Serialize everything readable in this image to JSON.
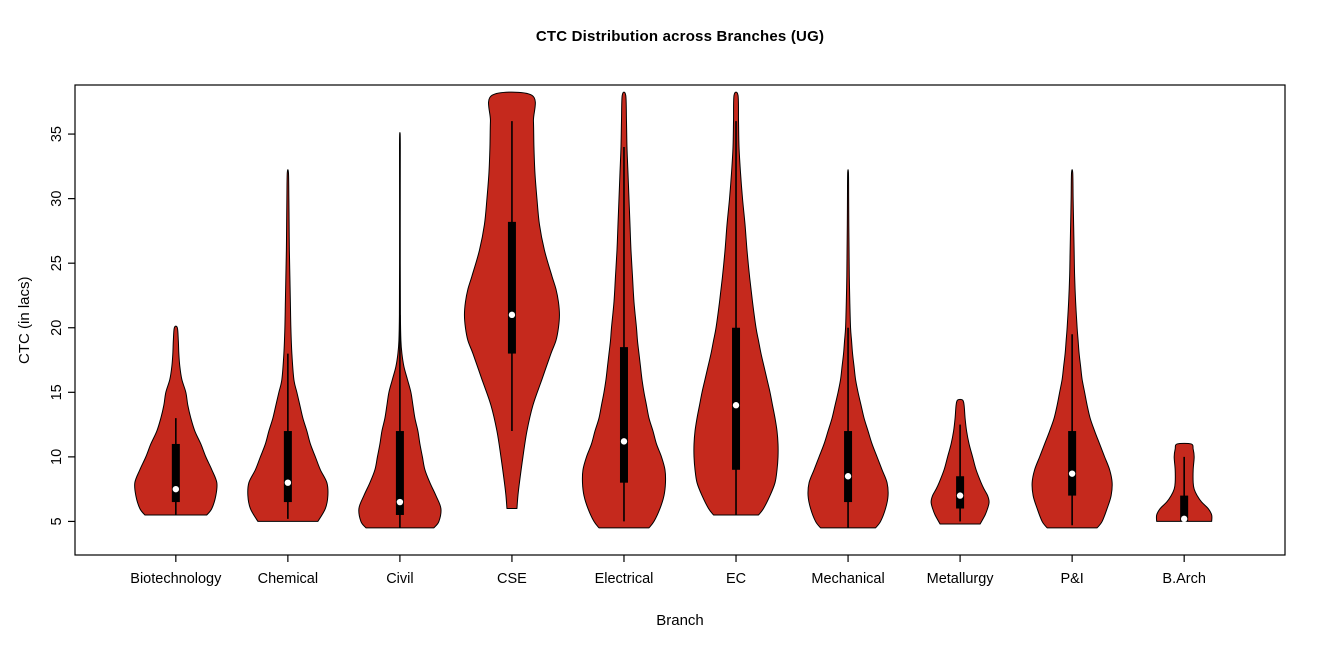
{
  "chart_data": {
    "type": "violin",
    "title": "CTC Distribution across Branches (UG)",
    "xlabel": "Branch",
    "ylabel": "CTC (in lacs)",
    "ylim": [
      2.4,
      38.8
    ],
    "yticks": [
      5,
      10,
      15,
      20,
      25,
      30,
      35
    ],
    "categories": [
      "Biotechnology",
      "Chemical",
      "Civil",
      "CSE",
      "Electrical",
      "EC",
      "Mechanical",
      "Metallurgy",
      "P&I",
      "B.Arch"
    ],
    "colors": {
      "violin_fill": "#C5291D",
      "violin_stroke": "#000000",
      "box": "#000000",
      "median_dot": "#FFFFFF",
      "axis": "#000000",
      "background": "#FFFFFF"
    },
    "series": [
      {
        "name": "Biotechnology",
        "min": 5.5,
        "max": 20,
        "median": 7.5,
        "q1": 6.5,
        "q3": 11,
        "whisker_low": 5.5,
        "whisker_high": 13,
        "profile": [
          [
            5.5,
            0.62
          ],
          [
            6,
            0.72
          ],
          [
            7,
            0.8
          ],
          [
            8,
            0.82
          ],
          [
            9,
            0.72
          ],
          [
            10,
            0.6
          ],
          [
            11,
            0.5
          ],
          [
            12,
            0.38
          ],
          [
            13,
            0.3
          ],
          [
            14,
            0.24
          ],
          [
            15,
            0.2
          ],
          [
            16,
            0.12
          ],
          [
            17,
            0.08
          ],
          [
            18,
            0.06
          ],
          [
            19,
            0.05
          ],
          [
            20,
            0.03
          ]
        ]
      },
      {
        "name": "Chemical",
        "min": 5,
        "max": 32,
        "median": 8,
        "q1": 6.5,
        "q3": 12,
        "whisker_low": 5.2,
        "whisker_high": 18,
        "profile": [
          [
            5,
            0.6
          ],
          [
            6,
            0.75
          ],
          [
            7,
            0.8
          ],
          [
            8,
            0.78
          ],
          [
            9,
            0.65
          ],
          [
            10,
            0.55
          ],
          [
            11,
            0.45
          ],
          [
            12,
            0.38
          ],
          [
            13,
            0.3
          ],
          [
            14,
            0.24
          ],
          [
            15,
            0.18
          ],
          [
            16,
            0.12
          ],
          [
            18,
            0.08
          ],
          [
            20,
            0.06
          ],
          [
            22,
            0.05
          ],
          [
            24,
            0.04
          ],
          [
            26,
            0.03
          ],
          [
            28,
            0.025
          ],
          [
            30,
            0.02
          ],
          [
            32,
            0.012
          ]
        ]
      },
      {
        "name": "Civil",
        "min": 4.5,
        "max": 35,
        "median": 6.5,
        "q1": 5.5,
        "q3": 12,
        "whisker_low": 4.5,
        "whisker_high": 21,
        "profile": [
          [
            4.5,
            0.68
          ],
          [
            5,
            0.78
          ],
          [
            6,
            0.82
          ],
          [
            7,
            0.72
          ],
          [
            8,
            0.6
          ],
          [
            9,
            0.5
          ],
          [
            10,
            0.45
          ],
          [
            11,
            0.4
          ],
          [
            12,
            0.36
          ],
          [
            13,
            0.3
          ],
          [
            14,
            0.26
          ],
          [
            15,
            0.22
          ],
          [
            16,
            0.15
          ],
          [
            17,
            0.08
          ],
          [
            18,
            0.04
          ],
          [
            19,
            0.02
          ],
          [
            21,
            0.01
          ],
          [
            25,
            0.007
          ],
          [
            30,
            0.007
          ],
          [
            34,
            0.008
          ],
          [
            35,
            0.005
          ]
        ]
      },
      {
        "name": "CSE",
        "min": 6,
        "max": 38,
        "median": 21,
        "q1": 18,
        "q3": 28.2,
        "whisker_low": 12,
        "whisker_high": 36,
        "profile": [
          [
            6,
            0.1
          ],
          [
            7,
            0.12
          ],
          [
            8,
            0.15
          ],
          [
            10,
            0.22
          ],
          [
            12,
            0.3
          ],
          [
            14,
            0.42
          ],
          [
            16,
            0.6
          ],
          [
            18,
            0.78
          ],
          [
            19,
            0.88
          ],
          [
            20,
            0.93
          ],
          [
            21,
            0.95
          ],
          [
            22,
            0.93
          ],
          [
            23,
            0.88
          ],
          [
            24,
            0.8
          ],
          [
            26,
            0.65
          ],
          [
            28,
            0.55
          ],
          [
            30,
            0.5
          ],
          [
            32,
            0.46
          ],
          [
            34,
            0.44
          ],
          [
            36,
            0.43
          ],
          [
            38,
            0.4
          ]
        ]
      },
      {
        "name": "Electrical",
        "min": 4.5,
        "max": 38,
        "median": 11.2,
        "q1": 8,
        "q3": 18.5,
        "whisker_low": 5,
        "whisker_high": 34,
        "profile": [
          [
            4.5,
            0.5
          ],
          [
            5,
            0.6
          ],
          [
            6,
            0.72
          ],
          [
            7,
            0.8
          ],
          [
            8,
            0.83
          ],
          [
            9,
            0.82
          ],
          [
            10,
            0.75
          ],
          [
            11,
            0.65
          ],
          [
            12,
            0.58
          ],
          [
            13,
            0.5
          ],
          [
            14,
            0.45
          ],
          [
            15,
            0.4
          ],
          [
            16,
            0.36
          ],
          [
            17,
            0.33
          ],
          [
            18,
            0.3
          ],
          [
            19,
            0.27
          ],
          [
            20,
            0.25
          ],
          [
            22,
            0.2
          ],
          [
            24,
            0.17
          ],
          [
            26,
            0.14
          ],
          [
            28,
            0.12
          ],
          [
            30,
            0.1
          ],
          [
            32,
            0.08
          ],
          [
            34,
            0.06
          ],
          [
            36,
            0.05
          ],
          [
            38,
            0.035
          ]
        ]
      },
      {
        "name": "EC",
        "min": 5.5,
        "max": 38,
        "median": 14,
        "q1": 9,
        "q3": 20,
        "whisker_low": 5.5,
        "whisker_high": 36,
        "profile": [
          [
            5.5,
            0.45
          ],
          [
            6,
            0.55
          ],
          [
            7,
            0.68
          ],
          [
            8,
            0.78
          ],
          [
            9,
            0.82
          ],
          [
            10,
            0.84
          ],
          [
            11,
            0.84
          ],
          [
            12,
            0.82
          ],
          [
            13,
            0.78
          ],
          [
            14,
            0.73
          ],
          [
            15,
            0.68
          ],
          [
            16,
            0.62
          ],
          [
            17,
            0.56
          ],
          [
            18,
            0.5
          ],
          [
            19,
            0.45
          ],
          [
            20,
            0.4
          ],
          [
            22,
            0.33
          ],
          [
            24,
            0.27
          ],
          [
            26,
            0.22
          ],
          [
            28,
            0.18
          ],
          [
            30,
            0.13
          ],
          [
            32,
            0.09
          ],
          [
            34,
            0.06
          ],
          [
            36,
            0.05
          ],
          [
            38,
            0.04
          ]
        ]
      },
      {
        "name": "Mechanical",
        "min": 4.5,
        "max": 32,
        "median": 8.5,
        "q1": 6.5,
        "q3": 12,
        "whisker_low": 4.5,
        "whisker_high": 20,
        "profile": [
          [
            4.5,
            0.55
          ],
          [
            5,
            0.65
          ],
          [
            6,
            0.75
          ],
          [
            7,
            0.8
          ],
          [
            8,
            0.78
          ],
          [
            9,
            0.68
          ],
          [
            10,
            0.58
          ],
          [
            11,
            0.48
          ],
          [
            12,
            0.4
          ],
          [
            13,
            0.32
          ],
          [
            14,
            0.26
          ],
          [
            15,
            0.2
          ],
          [
            16,
            0.15
          ],
          [
            17,
            0.12
          ],
          [
            18,
            0.09
          ],
          [
            19,
            0.07
          ],
          [
            20,
            0.05
          ],
          [
            22,
            0.035
          ],
          [
            24,
            0.025
          ],
          [
            26,
            0.02
          ],
          [
            28,
            0.015
          ],
          [
            30,
            0.012
          ],
          [
            32,
            0.008
          ]
        ]
      },
      {
        "name": "Metallurgy",
        "min": 4.8,
        "max": 14.4,
        "median": 7,
        "q1": 6,
        "q3": 8.5,
        "whisker_low": 5,
        "whisker_high": 12.5,
        "profile": [
          [
            4.8,
            0.4
          ],
          [
            5.5,
            0.5
          ],
          [
            6,
            0.55
          ],
          [
            6.5,
            0.58
          ],
          [
            7,
            0.55
          ],
          [
            7.5,
            0.48
          ],
          [
            8,
            0.42
          ],
          [
            9,
            0.32
          ],
          [
            10,
            0.25
          ],
          [
            11,
            0.18
          ],
          [
            12,
            0.13
          ],
          [
            13,
            0.1
          ],
          [
            14,
            0.08
          ],
          [
            14.4,
            0.05
          ]
        ]
      },
      {
        "name": "P&I",
        "min": 4.5,
        "max": 32,
        "median": 8.7,
        "q1": 7,
        "q3": 12,
        "whisker_low": 4.7,
        "whisker_high": 19.5,
        "profile": [
          [
            4.5,
            0.5
          ],
          [
            5,
            0.6
          ],
          [
            6,
            0.7
          ],
          [
            7,
            0.78
          ],
          [
            8,
            0.8
          ],
          [
            9,
            0.75
          ],
          [
            10,
            0.65
          ],
          [
            11,
            0.55
          ],
          [
            12,
            0.45
          ],
          [
            13,
            0.36
          ],
          [
            14,
            0.3
          ],
          [
            15,
            0.25
          ],
          [
            16,
            0.2
          ],
          [
            17,
            0.17
          ],
          [
            18,
            0.14
          ],
          [
            19,
            0.12
          ],
          [
            20,
            0.1
          ],
          [
            22,
            0.07
          ],
          [
            24,
            0.05
          ],
          [
            26,
            0.04
          ],
          [
            28,
            0.03
          ],
          [
            30,
            0.02
          ],
          [
            32,
            0.012
          ]
        ]
      },
      {
        "name": "B.Arch",
        "min": 5,
        "max": 11,
        "median": 5.2,
        "q1": 5,
        "q3": 7,
        "whisker_low": 5,
        "whisker_high": 10,
        "profile": [
          [
            5,
            0.55
          ],
          [
            5.5,
            0.55
          ],
          [
            6,
            0.48
          ],
          [
            6.5,
            0.35
          ],
          [
            7,
            0.26
          ],
          [
            7.5,
            0.2
          ],
          [
            8,
            0.18
          ],
          [
            9,
            0.18
          ],
          [
            10,
            0.2
          ],
          [
            10.6,
            0.18
          ],
          [
            11,
            0.14
          ]
        ]
      }
    ]
  }
}
